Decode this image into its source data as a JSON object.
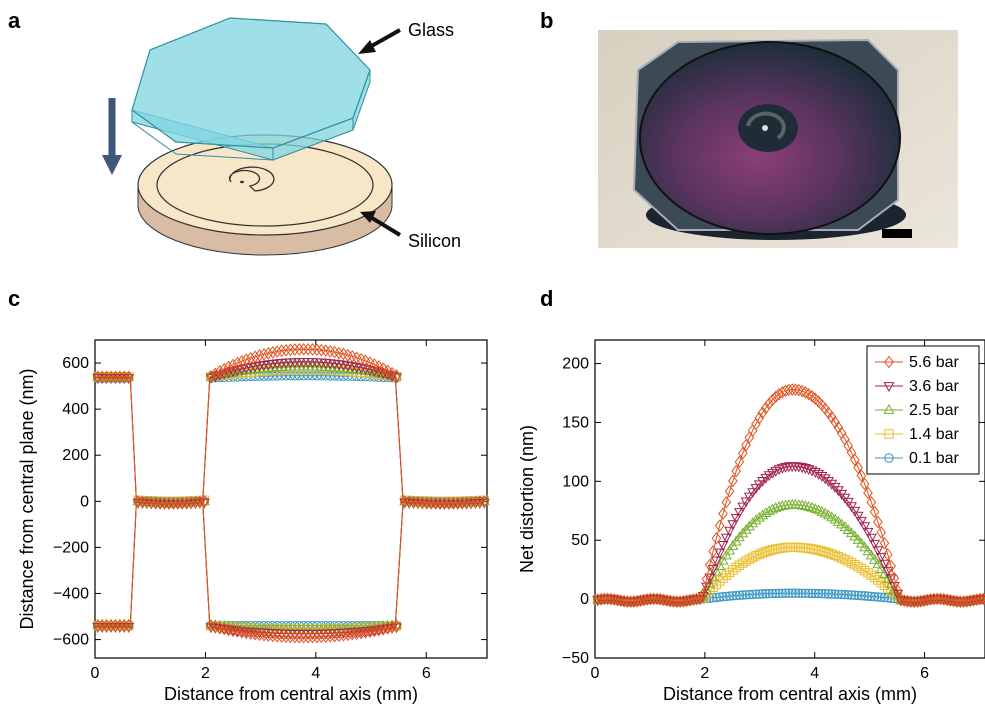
{
  "panels": {
    "a": {
      "letter": "a",
      "labels": {
        "glass": "Glass",
        "silicon": "Silicon"
      },
      "colors": {
        "glass": "#7fd6e0",
        "silicon": "#f7e6c8",
        "silicon_side": "#d8bca4",
        "arrow": "#3e5677"
      }
    },
    "b": {
      "letter": "b"
    },
    "c": {
      "letter": "c"
    },
    "d": {
      "letter": "d"
    }
  },
  "chart_data": [
    {
      "panel": "c",
      "type": "scatter",
      "xlabel": "Distance from central axis (mm)",
      "ylabel": "Distance from central plane (nm)",
      "xlim": [
        0,
        7.1
      ],
      "ylim": [
        -680,
        700
      ],
      "xticks": [
        0,
        2,
        4,
        6
      ],
      "yticks": [
        -600,
        -400,
        -200,
        0,
        200,
        400,
        600
      ],
      "ytick_labels": [
        "−600",
        "−400",
        "−200",
        "0",
        "200",
        "400",
        "600"
      ],
      "grid": false,
      "profile_breaks_mm": [
        0.65,
        0.75,
        2.0,
        2.08,
        5.5,
        5.58
      ],
      "series": [
        {
          "name": "5.6 bar",
          "color": "#e0531f",
          "marker": "diamond",
          "top": [
            540,
            660
          ],
          "bottom": [
            -540,
            -590
          ],
          "inner": [
            0,
            -10
          ]
        },
        {
          "name": "3.6 bar",
          "color": "#a2224e",
          "marker": "triangle-down",
          "top": [
            535,
            605
          ],
          "bottom": [
            -545,
            -575
          ],
          "inner": [
            -5,
            -10
          ]
        },
        {
          "name": "2.5 bar",
          "color": "#7ab030",
          "marker": "triangle-up",
          "top": [
            540,
            585
          ],
          "bottom": [
            -535,
            -560
          ],
          "inner": [
            0,
            -5
          ]
        },
        {
          "name": "1.4 bar",
          "color": "#e8be2c",
          "marker": "square",
          "top": [
            540,
            570
          ],
          "bottom": [
            -540,
            -555
          ],
          "inner": [
            5,
            0
          ]
        },
        {
          "name": "0.1 bar",
          "color": "#3a94c4",
          "marker": "circle",
          "top": [
            535,
            545
          ],
          "bottom": [
            -540,
            -540
          ],
          "inner": [
            0,
            0
          ]
        }
      ]
    },
    {
      "panel": "d",
      "type": "scatter",
      "xlabel": "Distance from central axis (mm)",
      "ylabel": "Net distortion (nm)",
      "xlim": [
        0,
        7.1
      ],
      "ylim": [
        -50,
        220
      ],
      "xticks": [
        0,
        2,
        4,
        6
      ],
      "yticks": [
        -50,
        0,
        50,
        100,
        150,
        200
      ],
      "ytick_labels": [
        "−50",
        "0",
        "50",
        "100",
        "150",
        "200"
      ],
      "grid": false,
      "legend": "top-right",
      "dome_range_mm": [
        1.95,
        5.55
      ],
      "dome_center_mm": 3.6,
      "series": [
        {
          "name": "5.6 bar",
          "color": "#e0531f",
          "marker": "diamond",
          "peak": 178
        },
        {
          "name": "3.6 bar",
          "color": "#a2224e",
          "marker": "triangle-down",
          "peak": 113
        },
        {
          "name": "2.5 bar",
          "color": "#7ab030",
          "marker": "triangle-up",
          "peak": 80
        },
        {
          "name": "1.4 bar",
          "color": "#e8be2c",
          "marker": "square",
          "peak": 44
        },
        {
          "name": "0.1 bar",
          "color": "#3a94c4",
          "marker": "circle",
          "peak": 5
        }
      ]
    }
  ]
}
